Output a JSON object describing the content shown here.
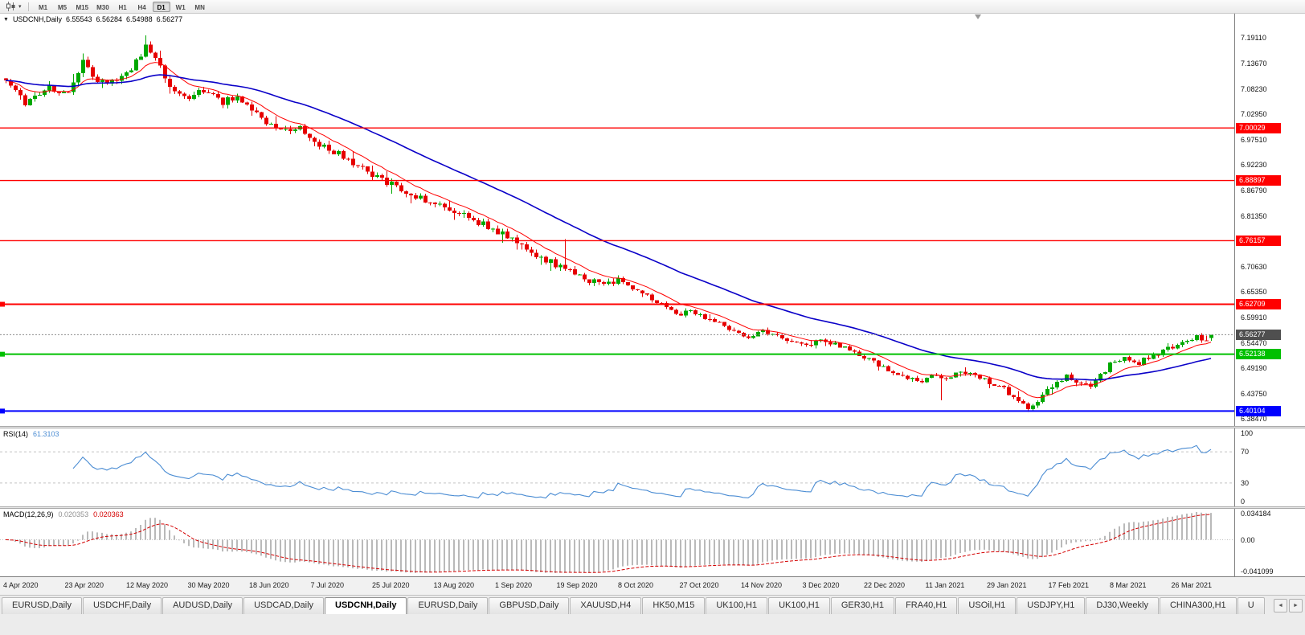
{
  "icons": {
    "one_click": "▼",
    "dropdown": "▾",
    "tab_left": "◄",
    "tab_right": "►"
  },
  "toolbar": {
    "timeframes": [
      "M1",
      "M5",
      "M15",
      "M30",
      "H1",
      "H4",
      "D1",
      "W1",
      "MN"
    ],
    "active_timeframe": "D1"
  },
  "chart": {
    "symbol_title": "USDCNH,Daily",
    "ohlc": {
      "open": "6.55543",
      "high": "6.56284",
      "low": "6.54988",
      "close": "6.56277"
    }
  },
  "rsi": {
    "label": "RSI(14)",
    "value": "61.3103",
    "value_color": "#4a8cd3",
    "line_color": "#4a8cd3",
    "scale_labels": [
      "100",
      "70",
      "30",
      "0"
    ],
    "scale_values": [
      100,
      70,
      30,
      0
    ],
    "overbought": 70,
    "oversold": 30
  },
  "macd": {
    "label": "MACD(12,26,9)",
    "main_value": "0.020353",
    "signal_value": "0.020363",
    "main_color": "#8f8f8f",
    "signal_color": "#d40000",
    "hist_color": "#a8a8a8",
    "scale_labels": [
      "0.034184",
      "0.00",
      "-0.041099"
    ],
    "scale_values": [
      0.034184,
      0,
      -0.041099
    ]
  },
  "tabs": {
    "items": [
      "EURUSD,Daily",
      "USDCHF,Daily",
      "AUDUSD,Daily",
      "USDCAD,Daily",
      "USDCNH,Daily",
      "EURUSD,Daily",
      "GBPUSD,Daily",
      "XAUUSD,H4",
      "HK50,M15",
      "UK100,H1",
      "UK100,H1",
      "GER30,H1",
      "FRA40,H1",
      "USOil,H1",
      "USDJPY,H1",
      "DJ30,Weekly",
      "CHINA300,H1",
      "U"
    ],
    "active_index": 4
  },
  "chart_data": {
    "type": "candlestick",
    "title": "USDCNH,Daily",
    "symbol": "USDCNH",
    "timeframe": "Daily",
    "ylim": [
      6.3694,
      7.2421
    ],
    "price_axis": {
      "tick_labels": [
        "7.19110",
        "7.13670",
        "7.08230",
        "7.02950",
        "6.97510",
        "6.92230",
        "6.86790",
        "6.81350",
        "6.76070",
        "6.70630",
        "6.65350",
        "6.59910",
        "6.54470",
        "6.49190",
        "6.43750",
        "6.38470"
      ],
      "tick_values": [
        7.1911,
        7.1367,
        7.0823,
        7.0295,
        6.9751,
        6.9223,
        6.8679,
        6.8135,
        6.7607,
        6.7063,
        6.6535,
        6.5991,
        6.5447,
        6.4919,
        6.4375,
        6.3847
      ]
    },
    "time_labels": [
      "4 Apr 2020",
      "23 Apr 2020",
      "12 May 2020",
      "30 May 2020",
      "18 Jun 2020",
      "7 Jul 2020",
      "25 Jul 2020",
      "13 Aug 2020",
      "1 Sep 2020",
      "19 Sep 2020",
      "8 Oct 2020",
      "27 Oct 2020",
      "14 Nov 2020",
      "3 Dec 2020",
      "22 Dec 2020",
      "11 Jan 2021",
      "29 Jan 2021",
      "17 Feb 2021",
      "8 Mar 2021",
      "26 Mar 2021"
    ],
    "hlines": [
      {
        "label": "7.00029",
        "value": 7.00029,
        "color": "#ff0000",
        "width": 1.4,
        "handle": false
      },
      {
        "label": "6.88897",
        "value": 6.88897,
        "color": "#ff0000",
        "width": 1.4,
        "handle": false
      },
      {
        "label": "6.76157",
        "value": 6.76157,
        "color": "#ff0000",
        "width": 1.4,
        "handle": false
      },
      {
        "label": "6.62709",
        "value": 6.62709,
        "color": "#ff0000",
        "width": 2,
        "handle": true
      },
      {
        "label": "6.52138",
        "value": 6.52138,
        "color": "#00c000",
        "width": 2,
        "handle": true
      },
      {
        "label": "6.40104",
        "value": 6.40104,
        "color": "#0000ff",
        "width": 2,
        "handle": true
      }
    ],
    "bid": {
      "label": "6.56277",
      "value": 6.56277,
      "line_color": "#8c8c8c",
      "tag_color": "#4f4f4f"
    },
    "candle_colors": {
      "up": "#00a800",
      "down": "#e60000"
    },
    "overlays": [
      {
        "name": "ma-fast",
        "type": "ema",
        "period": 10,
        "color": "#ff0000",
        "width": 1
      },
      {
        "name": "ma-slow",
        "type": "ema",
        "period": 40,
        "color": "#0a00c8",
        "width": 1.6
      }
    ],
    "series": {
      "num_candles": 251,
      "seed": 1337,
      "jitter": 0.011,
      "clamp": {
        "min": 6.3985,
        "max": 7.2
      },
      "waypoints": [
        [
          0,
          7.105
        ],
        [
          4,
          7.052
        ],
        [
          9,
          7.085
        ],
        [
          13,
          7.072
        ],
        [
          16,
          7.142
        ],
        [
          19,
          7.098
        ],
        [
          23,
          7.103
        ],
        [
          26,
          7.128
        ],
        [
          29,
          7.172
        ],
        [
          31,
          7.152
        ],
        [
          34,
          7.088
        ],
        [
          38,
          7.066
        ],
        [
          41,
          7.078
        ],
        [
          45,
          7.055
        ],
        [
          48,
          7.068
        ],
        [
          51,
          7.042
        ],
        [
          54,
          7.012
        ],
        [
          58,
          6.994
        ],
        [
          61,
          6.999
        ],
        [
          64,
          6.972
        ],
        [
          68,
          6.951
        ],
        [
          72,
          6.928
        ],
        [
          76,
          6.902
        ],
        [
          79,
          6.886
        ],
        [
          83,
          6.868
        ],
        [
          86,
          6.851
        ],
        [
          89,
          6.838
        ],
        [
          93,
          6.826
        ],
        [
          96,
          6.811
        ],
        [
          99,
          6.796
        ],
        [
          102,
          6.781
        ],
        [
          105,
          6.763
        ],
        [
          108,
          6.745
        ],
        [
          111,
          6.727
        ],
        [
          114,
          6.711
        ],
        [
          116,
          6.704
        ],
        [
          118,
          6.694
        ],
        [
          121,
          6.677
        ],
        [
          124,
          6.667
        ],
        [
          127,
          6.676
        ],
        [
          130,
          6.659
        ],
        [
          133,
          6.644
        ],
        [
          136,
          6.627
        ],
        [
          139,
          6.604
        ],
        [
          142,
          6.612
        ],
        [
          145,
          6.597
        ],
        [
          148,
          6.585
        ],
        [
          151,
          6.573
        ],
        [
          154,
          6.555
        ],
        [
          157,
          6.569
        ],
        [
          160,
          6.561
        ],
        [
          163,
          6.547
        ],
        [
          166,
          6.537
        ],
        [
          169,
          6.551
        ],
        [
          172,
          6.543
        ],
        [
          175,
          6.529
        ],
        [
          178,
          6.515
        ],
        [
          181,
          6.499
        ],
        [
          184,
          6.485
        ],
        [
          187,
          6.473
        ],
        [
          190,
          6.464
        ],
        [
          192,
          6.479
        ],
        [
          195,
          6.471
        ],
        [
          198,
          6.485
        ],
        [
          201,
          6.477
        ],
        [
          204,
          6.461
        ],
        [
          207,
          6.447
        ],
        [
          210,
          6.424
        ],
        [
          212,
          6.407
        ],
        [
          214,
          6.419
        ],
        [
          216,
          6.444
        ],
        [
          218,
          6.461
        ],
        [
          220,
          6.474
        ],
        [
          222,
          6.465
        ],
        [
          225,
          6.451
        ],
        [
          227,
          6.477
        ],
        [
          229,
          6.499
        ],
        [
          232,
          6.512
        ],
        [
          235,
          6.504
        ],
        [
          238,
          6.519
        ],
        [
          241,
          6.534
        ],
        [
          244,
          6.547
        ],
        [
          247,
          6.557
        ],
        [
          249,
          6.547
        ],
        [
          250,
          6.5628
        ]
      ],
      "spikes": [
        {
          "i": 16,
          "high": 7.158
        },
        {
          "i": 29,
          "high": 7.196
        },
        {
          "i": 116,
          "high": 6.765
        },
        {
          "i": 194,
          "low": 6.424
        },
        {
          "i": 212,
          "low": 6.3995
        },
        {
          "i": 213,
          "low": 6.402
        }
      ],
      "last_candle": {
        "o": 6.55543,
        "h": 6.56284,
        "l": 6.54988,
        "c": 6.56277
      }
    },
    "rsi_period": 14,
    "macd_params": [
      12,
      26,
      9
    ]
  }
}
